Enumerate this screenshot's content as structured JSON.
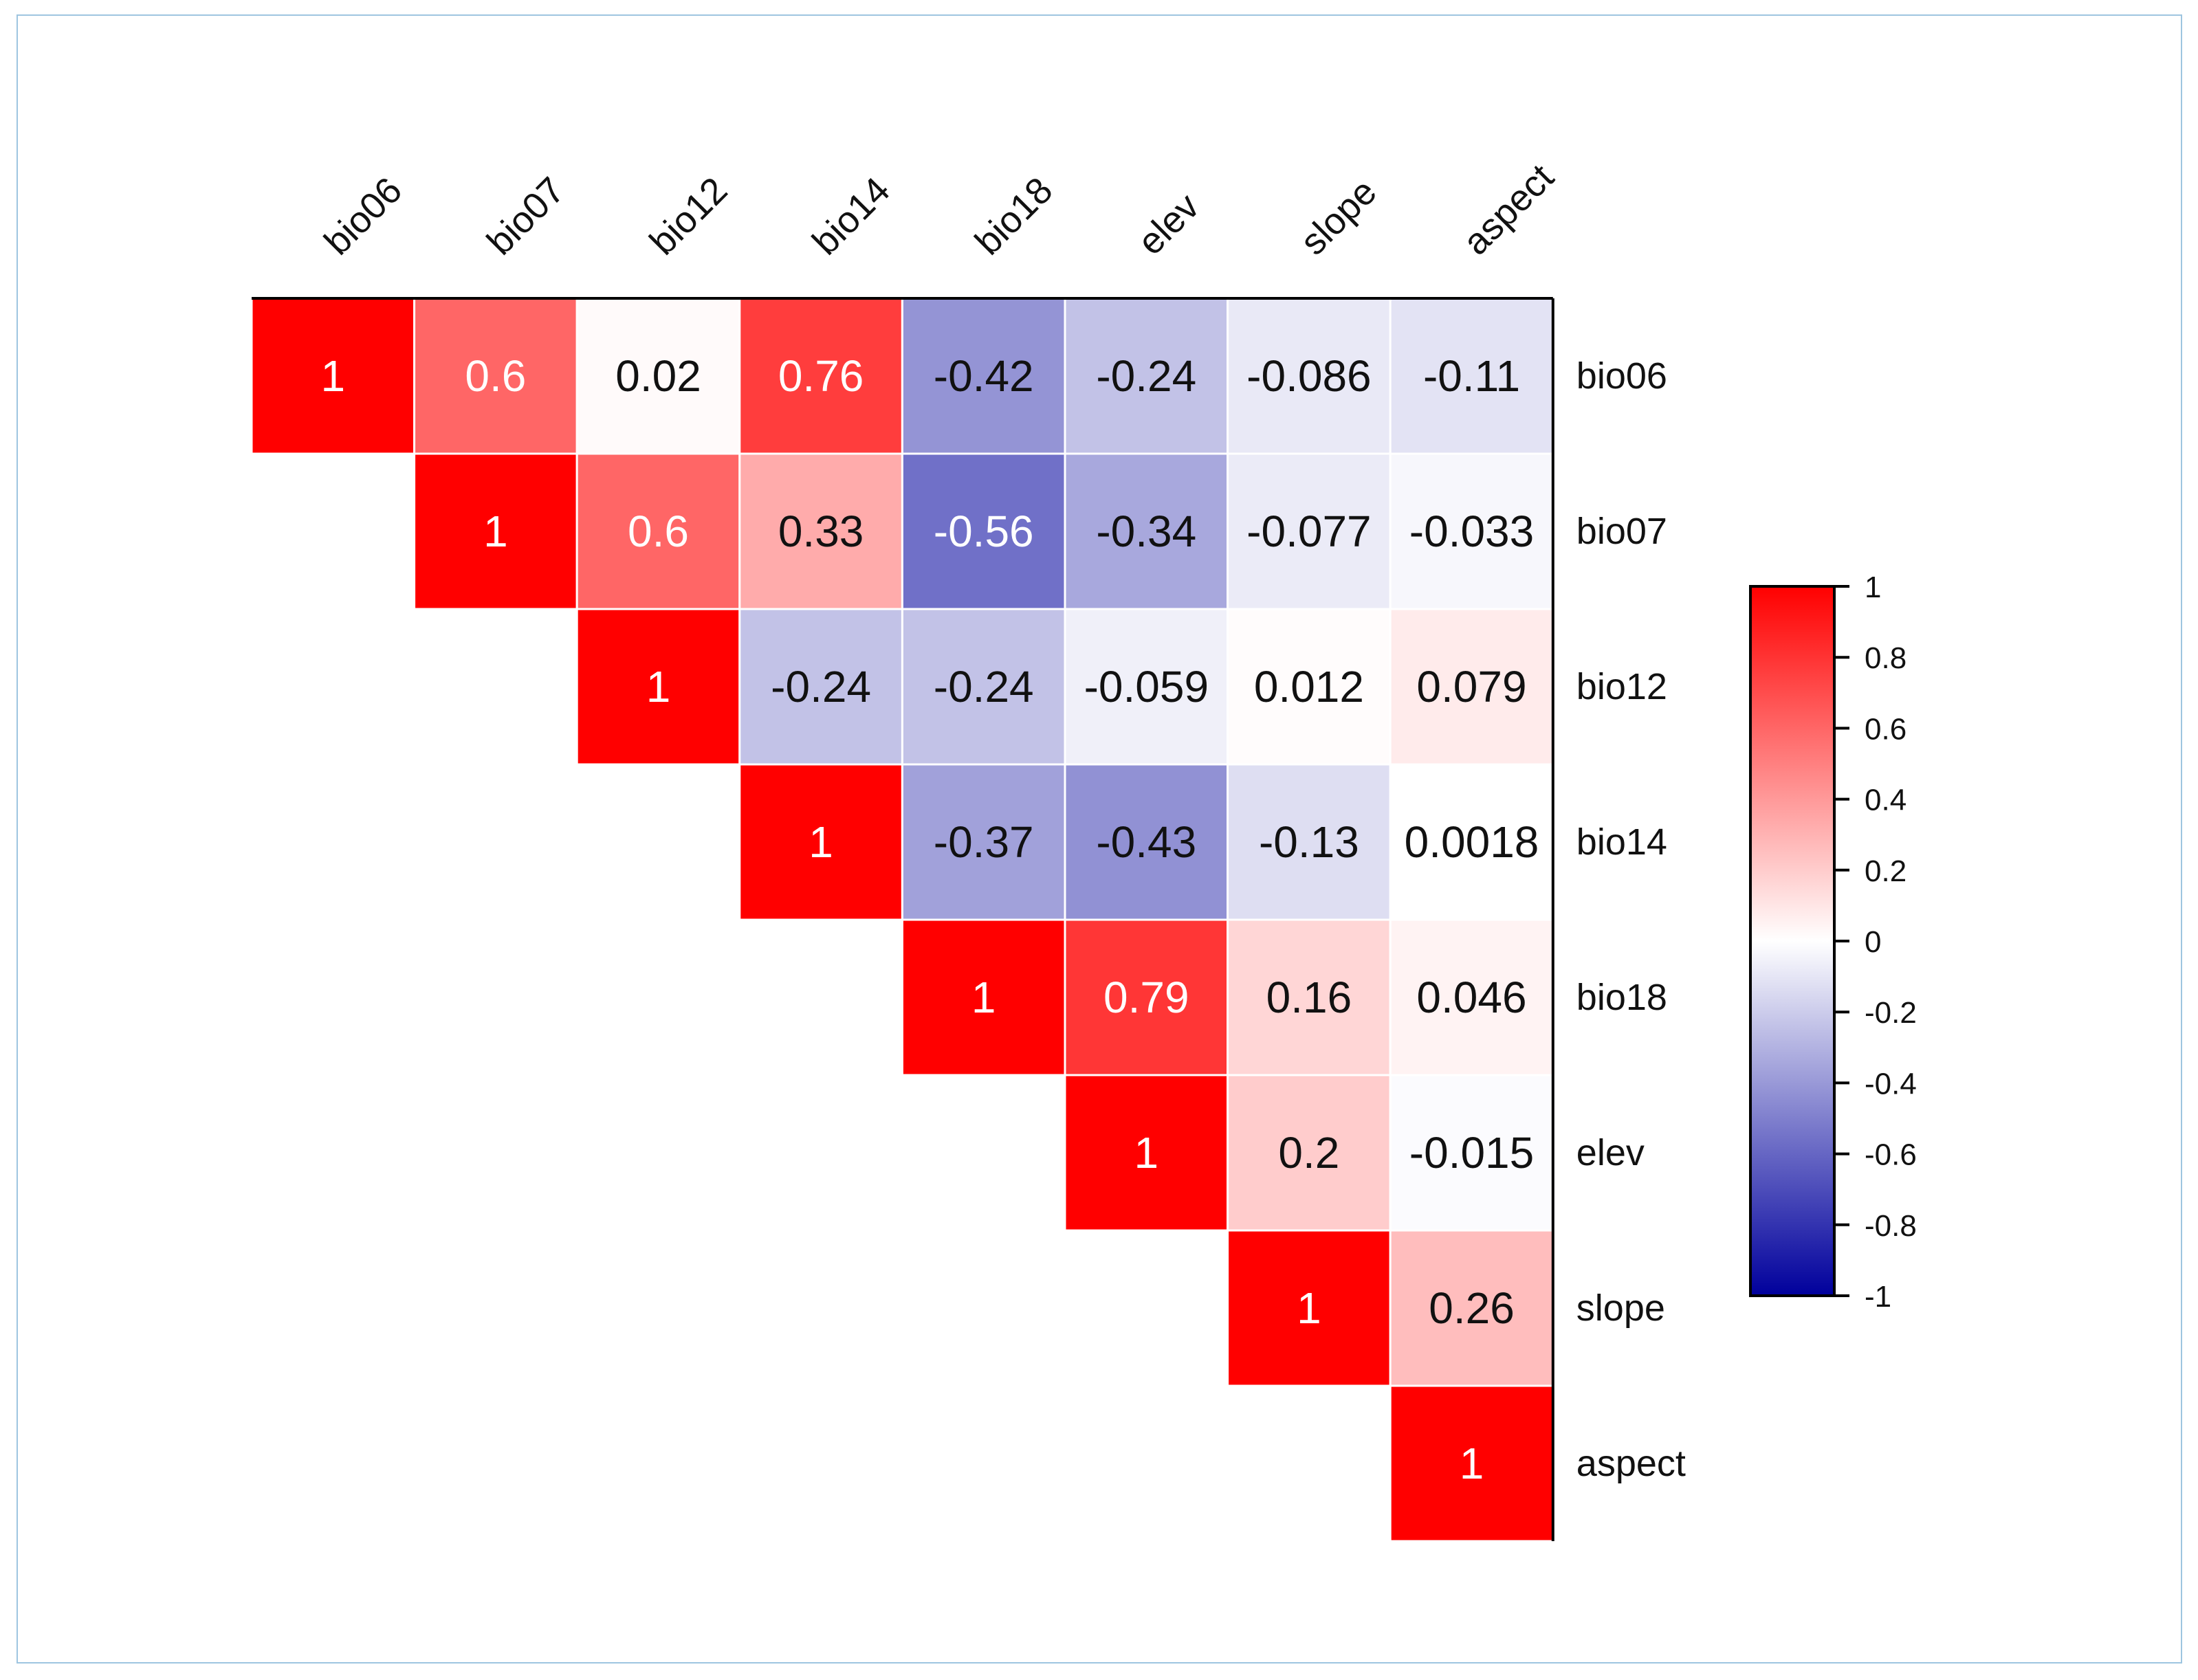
{
  "chart_data": {
    "type": "heatmap",
    "title": "",
    "variables": [
      "bio06",
      "bio07",
      "bio12",
      "bio14",
      "bio18",
      "elev",
      "slope",
      "aspect"
    ],
    "matrix": [
      [
        "1",
        "0.6",
        "0.02",
        "0.76",
        "-0.42",
        "-0.24",
        "-0.086",
        "-0.11"
      ],
      [
        null,
        "1",
        "0.6",
        "0.33",
        "-0.56",
        "-0.34",
        "-0.077",
        "-0.033"
      ],
      [
        null,
        null,
        "1",
        "-0.24",
        "-0.24",
        "-0.059",
        "0.012",
        "0.079"
      ],
      [
        null,
        null,
        null,
        "1",
        "-0.37",
        "-0.43",
        "-0.13",
        "0.0018"
      ],
      [
        null,
        null,
        null,
        null,
        "1",
        "0.79",
        "0.16",
        "0.046"
      ],
      [
        null,
        null,
        null,
        null,
        null,
        "1",
        "0.2",
        "-0.015"
      ],
      [
        null,
        null,
        null,
        null,
        null,
        null,
        "1",
        "0.26"
      ],
      [
        null,
        null,
        null,
        null,
        null,
        null,
        null,
        "1"
      ]
    ],
    "colorbar": {
      "range": [
        -1,
        1
      ],
      "ticks": [
        "1",
        "0.8",
        "0.6",
        "0.4",
        "0.2",
        "0",
        "-0.2",
        "-0.4",
        "-0.6",
        "-0.8",
        "-1"
      ],
      "colors": {
        "high": "#ff0000",
        "mid": "#ffffff",
        "low": "#00009c"
      }
    }
  }
}
